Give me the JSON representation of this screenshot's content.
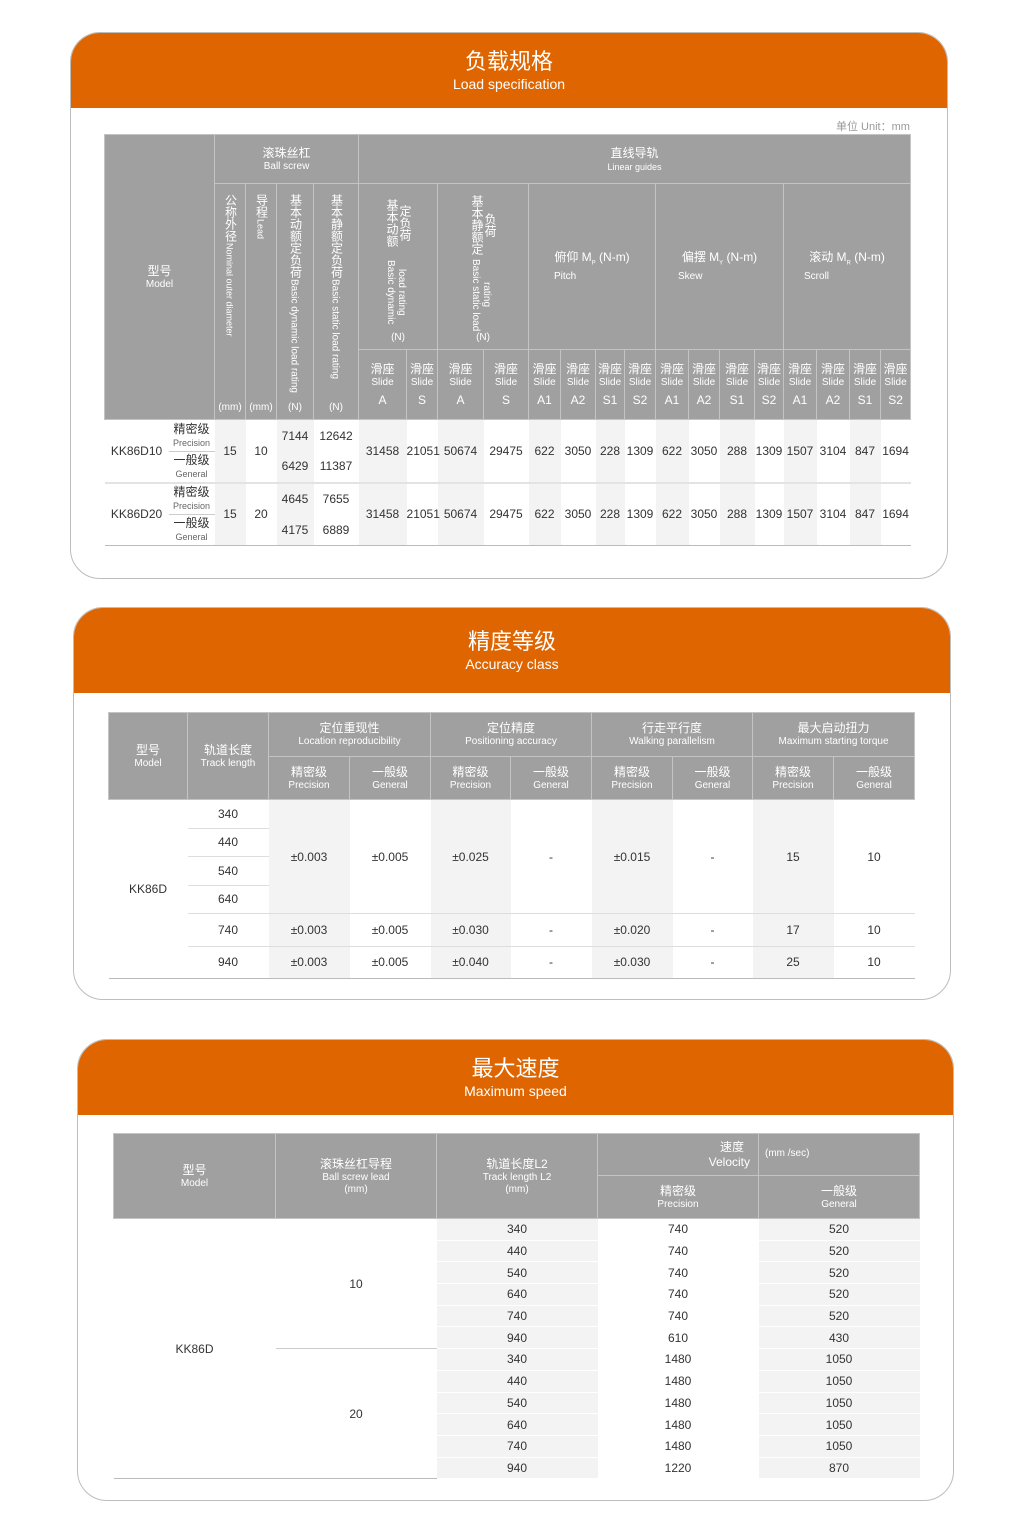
{
  "load": {
    "title": "负载规格",
    "subtitle": "Load specification",
    "unit_note": "单位 Unit：mm",
    "header": {
      "model_zh": "型号",
      "model_en": "Model",
      "ball_screw_zh": "滚珠丝杠",
      "ball_screw_en": "Ball screw",
      "linear_zh": "直线导轨",
      "linear_en": "Linear guides",
      "diameter_zh": "公称外径",
      "diameter_en": "Nominal outer diameter",
      "diameter_unit": "(mm)",
      "lead_zh": "导程",
      "lead_en": "Lead",
      "lead_unit": "(mm)",
      "dyn_zh": "基本动额定负荷",
      "dyn_en": "Basic dynamic load rating",
      "dyn_unit": "(N)",
      "stat_zh": "基本静额定负荷",
      "stat_en": "Basic static load rating",
      "stat_unit": "(N)",
      "pitch_zh": "俯仰 M",
      "pitch_sub": "P",
      "pitch_unit": "(N-m)",
      "pitch_en": "Pitch",
      "skew_zh": "偏摆 M",
      "skew_sub": "Y",
      "skew_unit": "(N-m)",
      "skew_en": "Skew",
      "scroll_zh": "滚动 M",
      "scroll_sub": "R",
      "scroll_unit": "(N-m)",
      "scroll_en": "Scroll",
      "slide_zh": "滑座",
      "slide_en": "Slide",
      "slides": [
        "A",
        "S",
        "A",
        "S",
        "A1",
        "A2",
        "S1",
        "S2",
        "A1",
        "A2",
        "S1",
        "S2",
        "A1",
        "A2",
        "S1",
        "S2"
      ]
    },
    "rows": [
      {
        "model": "KK86D10",
        "diameter": "15",
        "lead": "10",
        "grades": [
          {
            "zh": "精密级",
            "en": "Precision",
            "dyn": "7144",
            "stat": "12642"
          },
          {
            "zh": "一般级",
            "en": "General",
            "dyn": "6429",
            "stat": "11387"
          }
        ],
        "guide": [
          "31458",
          "21051",
          "50674",
          "29475",
          "622",
          "3050",
          "228",
          "1309",
          "622",
          "3050",
          "288",
          "1309",
          "1507",
          "3104",
          "847",
          "1694"
        ]
      },
      {
        "model": "KK86D20",
        "diameter": "15",
        "lead": "20",
        "grades": [
          {
            "zh": "精密级",
            "en": "Precision",
            "dyn": "4645",
            "stat": "7655"
          },
          {
            "zh": "一般级",
            "en": "General",
            "dyn": "4175",
            "stat": "6889"
          }
        ],
        "guide": [
          "31458",
          "21051",
          "50674",
          "29475",
          "622",
          "3050",
          "228",
          "1309",
          "622",
          "3050",
          "288",
          "1309",
          "1507",
          "3104",
          "847",
          "1694"
        ]
      }
    ]
  },
  "accuracy": {
    "title": "精度等级",
    "subtitle": "Accuracy class",
    "header": {
      "model_zh": "型号",
      "model_en": "Model",
      "track_zh": "轨道长度",
      "track_en": "Track length",
      "groups": [
        {
          "zh": "定位重现性",
          "en": "Location reproducibility"
        },
        {
          "zh": "定位精度",
          "en": "Positioning accuracy"
        },
        {
          "zh": "行走平行度",
          "en": "Walking parallelism"
        },
        {
          "zh": "最大启动扭力",
          "en": "Maximum starting torque"
        }
      ],
      "precision_zh": "精密级",
      "precision_en": "Precision",
      "general_zh": "一般级",
      "general_en": "General"
    },
    "model": "KK86D",
    "tracks": [
      "340",
      "440",
      "540",
      "640",
      "740",
      "940"
    ],
    "groups": [
      {
        "span": 4,
        "values": [
          "±0.003",
          "±0.005",
          "±0.025",
          "-",
          "±0.015",
          "-",
          "15",
          "10"
        ]
      },
      {
        "span": 1,
        "values": [
          "±0.003",
          "±0.005",
          "±0.030",
          "-",
          "±0.020",
          "-",
          "17",
          "10"
        ]
      },
      {
        "span": 1,
        "values": [
          "±0.003",
          "±0.005",
          "±0.040",
          "-",
          "±0.030",
          "-",
          "25",
          "10"
        ]
      }
    ]
  },
  "speed": {
    "title": "最大速度",
    "subtitle": "Maximum speed",
    "header": {
      "model_zh": "型号",
      "model_en": "Model",
      "lead_zh": "滚珠丝杠导程",
      "lead_en": "Ball screw lead",
      "lead_unit": "(mm)",
      "track_zh": "轨道长度L2",
      "track_en": "Track length L2",
      "track_unit": "(mm)",
      "velocity_zh": "速度",
      "velocity_en": "Velocity",
      "velocity_unit": "(mm /sec)",
      "precision_zh": "精密级",
      "precision_en": "Precision",
      "general_zh": "一般级",
      "general_en": "General"
    },
    "model": "KK86D",
    "leads": [
      {
        "lead": "10",
        "rows": [
          [
            "340",
            "740",
            "520"
          ],
          [
            "440",
            "740",
            "520"
          ],
          [
            "540",
            "740",
            "520"
          ],
          [
            "640",
            "740",
            "520"
          ],
          [
            "740",
            "740",
            "520"
          ],
          [
            "940",
            "610",
            "430"
          ]
        ]
      },
      {
        "lead": "20",
        "rows": [
          [
            "340",
            "1480",
            "1050"
          ],
          [
            "440",
            "1480",
            "1050"
          ],
          [
            "540",
            "1480",
            "1050"
          ],
          [
            "640",
            "1480",
            "1050"
          ],
          [
            "740",
            "1480",
            "1050"
          ],
          [
            "940",
            "1220",
            "870"
          ]
        ]
      }
    ]
  },
  "colors": {
    "banner": "#de6500",
    "header_gray": "#a0a0a0"
  }
}
